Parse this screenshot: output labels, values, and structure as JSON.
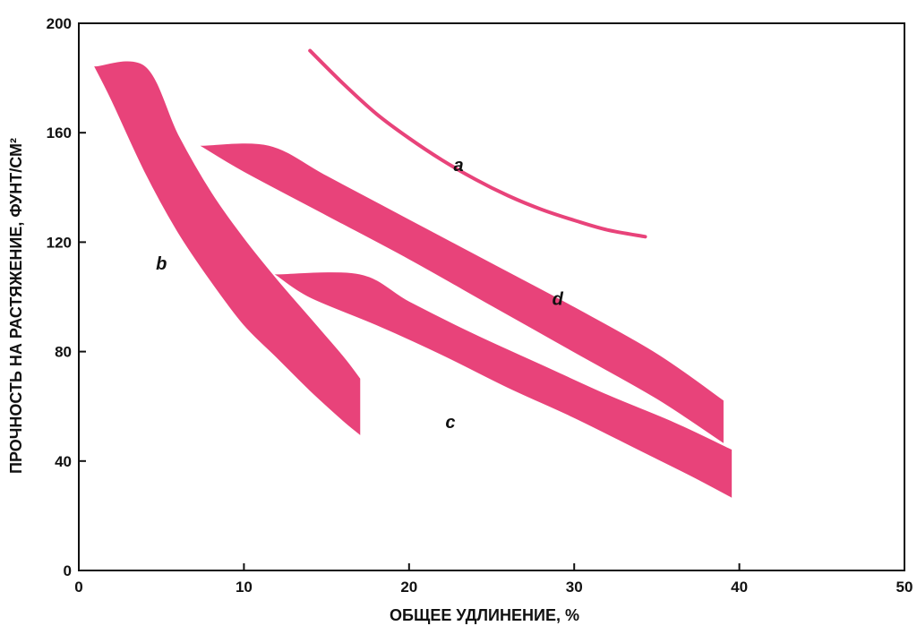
{
  "chart_data": {
    "type": "area",
    "title": "",
    "xlabel": "ОБЩЕЕ УДЛИНЕНИЕ, %",
    "ylabel": "ПРОЧНОСТЬ НА РАСТЯЖЕНИЕ, ФУНТ/СМ²",
    "xlim": [
      0,
      50
    ],
    "ylim": [
      0,
      200
    ],
    "x_ticks": [
      "0",
      "10",
      "20",
      "30",
      "40",
      "50"
    ],
    "y_ticks": [
      "0",
      "40",
      "80",
      "120",
      "160",
      "200"
    ],
    "grid": false,
    "band_color": "#e8437a",
    "series": [
      {
        "name": "a",
        "kind": "line",
        "label_at": [
          23,
          146
        ],
        "points": [
          [
            14,
            190
          ],
          [
            16,
            178
          ],
          [
            18,
            167
          ],
          [
            20,
            158
          ],
          [
            22,
            150
          ],
          [
            24,
            143
          ],
          [
            26,
            137
          ],
          [
            28,
            132
          ],
          [
            30,
            128
          ],
          [
            32,
            124.5
          ],
          [
            34.3,
            122
          ]
        ]
      },
      {
        "name": "b",
        "kind": "band",
        "label_at": [
          5,
          110
        ],
        "upper": [
          [
            1,
            184
          ],
          [
            4,
            184
          ],
          [
            6,
            159
          ],
          [
            8,
            138
          ],
          [
            10,
            121
          ],
          [
            12,
            106
          ],
          [
            14,
            92
          ],
          [
            16,
            78
          ],
          [
            17,
            70
          ]
        ],
        "lower": [
          [
            1,
            184
          ],
          [
            2,
            172
          ],
          [
            4,
            146
          ],
          [
            6,
            124
          ],
          [
            8,
            106
          ],
          [
            10,
            90
          ],
          [
            12,
            78
          ],
          [
            14,
            66
          ],
          [
            16,
            55
          ],
          [
            17,
            50
          ]
        ]
      },
      {
        "name": "c",
        "kind": "band",
        "label_at": [
          22.5,
          52
        ],
        "upper": [
          [
            12,
            108
          ],
          [
            17,
            108
          ],
          [
            20,
            98
          ],
          [
            24,
            86
          ],
          [
            28,
            75
          ],
          [
            32,
            64
          ],
          [
            36,
            54
          ],
          [
            39.5,
            44
          ]
        ],
        "lower": [
          [
            12,
            108
          ],
          [
            14,
            100
          ],
          [
            18,
            90
          ],
          [
            22,
            79
          ],
          [
            26,
            67
          ],
          [
            30,
            56
          ],
          [
            34,
            44
          ],
          [
            37,
            35
          ],
          [
            39.5,
            27
          ]
        ]
      },
      {
        "name": "d",
        "kind": "band",
        "label_at": [
          29,
          97
        ],
        "upper": [
          [
            7.5,
            155
          ],
          [
            11.5,
            155
          ],
          [
            15,
            144
          ],
          [
            20,
            128
          ],
          [
            25,
            112
          ],
          [
            30,
            96
          ],
          [
            35,
            79
          ],
          [
            39,
            62
          ]
        ],
        "lower": [
          [
            7.5,
            155
          ],
          [
            10,
            146
          ],
          [
            15,
            130
          ],
          [
            20,
            114
          ],
          [
            25,
            97
          ],
          [
            30,
            80
          ],
          [
            35,
            63
          ],
          [
            39,
            47
          ]
        ]
      }
    ]
  }
}
